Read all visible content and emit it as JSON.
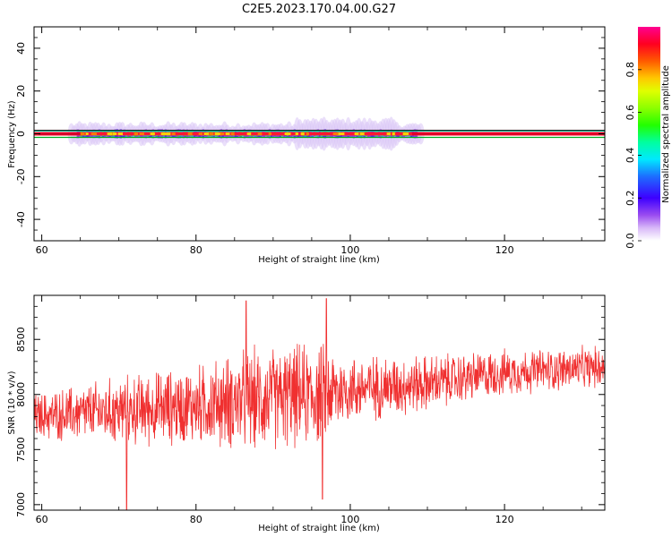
{
  "title": "C2E5.2023.170.04.00.G27",
  "colors": {
    "snr_line": "#f03030",
    "frame": "#000000"
  },
  "chart_data": [
    {
      "type": "heatmap",
      "xlabel": "Height of straight line (km)",
      "ylabel": "Frequency (Hz)",
      "xlim": [
        59,
        133
      ],
      "ylim": [
        -50,
        50
      ],
      "x_ticks": [
        60,
        80,
        100,
        120
      ],
      "y_ticks": [
        -40,
        -20,
        0,
        20,
        40
      ],
      "colorbar": {
        "label": "Normalized spectral amplitude",
        "range": [
          0,
          1
        ],
        "ticks": [
          "0.0",
          "0.2",
          "0.4",
          "0.6",
          "0.8"
        ],
        "colormap": "gist_ncar-like (white-purple-blue-cyan-green-yellow-red-magenta)"
      },
      "features": {
        "carrier_frequency_hz": 0,
        "broadening_region_km": [
          65,
          108
        ],
        "max_spread_hz": 6
      }
    },
    {
      "type": "line",
      "xlabel": "Height of straight line (km)",
      "ylabel": "SNR (10 * v/v)",
      "xlim": [
        59,
        133
      ],
      "ylim": [
        6950,
        8900
      ],
      "x_ticks": [
        60,
        80,
        100,
        120
      ],
      "y_ticks": [
        7000,
        7500,
        8000,
        8500
      ],
      "series_trend": [
        {
          "x": 59,
          "mean": 7800,
          "amplitude": 200
        },
        {
          "x": 70,
          "mean": 7850,
          "amplitude": 300
        },
        {
          "x": 80,
          "mean": 7900,
          "amplitude": 350
        },
        {
          "x": 87,
          "mean": 7950,
          "amplitude": 450
        },
        {
          "x": 96,
          "mean": 8000,
          "amplitude": 450
        },
        {
          "x": 100,
          "mean": 8050,
          "amplitude": 300
        },
        {
          "x": 110,
          "mean": 8100,
          "amplitude": 250
        },
        {
          "x": 120,
          "mean": 8200,
          "amplitude": 200
        },
        {
          "x": 133,
          "mean": 8250,
          "amplitude": 180
        }
      ],
      "peaks": [
        {
          "x": 86.5,
          "y": 8850
        },
        {
          "x": 96.9,
          "y": 8870
        },
        {
          "x": 71,
          "y": 6950
        },
        {
          "x": 96.4,
          "y": 7050
        }
      ]
    }
  ]
}
